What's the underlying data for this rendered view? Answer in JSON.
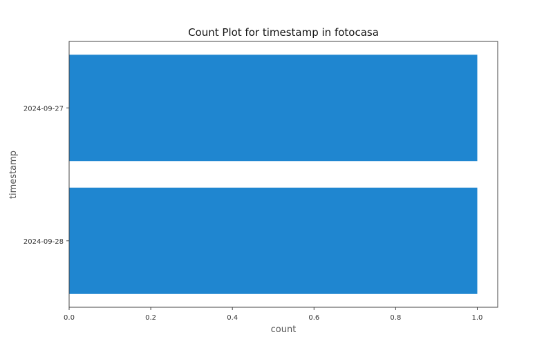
{
  "chart_data": {
    "type": "bar",
    "orientation": "horizontal",
    "title": "Count Plot for timestamp in fotocasa",
    "xlabel": "count",
    "ylabel": "timestamp",
    "categories": [
      "2024-09-27",
      "2024-09-28"
    ],
    "values": [
      1,
      1
    ],
    "xlim": [
      0,
      1.05
    ],
    "xticks": [
      "0.0",
      "0.2",
      "0.4",
      "0.6",
      "0.8",
      "1.0"
    ],
    "bar_color": "#1f86d0",
    "grid": false,
    "legend": "none"
  }
}
